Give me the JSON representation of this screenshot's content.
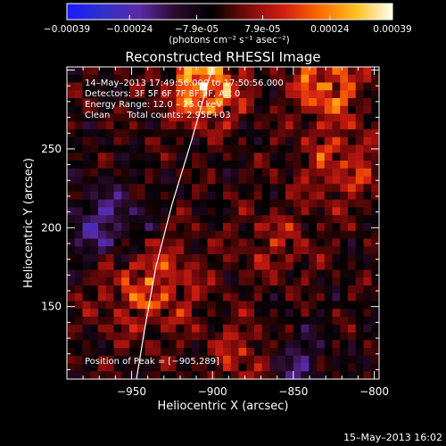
{
  "colorbar": {
    "ticks": [
      "-0.00039",
      "-0.00024",
      "-7.9e-05",
      "7.9e-05",
      "0.00024",
      "0.00039"
    ],
    "units": "(photons cm⁻² s⁻¹ asec⁻²)",
    "min": -0.00039,
    "max": 0.00039,
    "colors": [
      "#1a1aff",
      "#3030c8",
      "#5a2aa8",
      "#2a0a2a",
      "#000000",
      "#7a0a0a",
      "#d21e12",
      "#ff6a00",
      "#ffc020",
      "#fffff0"
    ]
  },
  "chart_data": {
    "type": "heatmap",
    "title": "Reconstructed RHESSI Image",
    "xlabel": "Heliocentric X (arcsec)",
    "ylabel": "Heliocentric Y (arcsec)",
    "xlim": [
      -990,
      -797
    ],
    "ylim": [
      104,
      302
    ],
    "x_ticks": [
      -950,
      -900,
      -850,
      -800
    ],
    "x_tick_labels": [
      "−950",
      "−900",
      "−850",
      "−800"
    ],
    "y_ticks": [
      150,
      200,
      250
    ],
    "y_tick_labels": [
      "150",
      "200",
      "250"
    ],
    "grid": false,
    "hot_regions": [
      {
        "x": -905,
        "y": 289,
        "sigma": 15,
        "amp": 1.0
      },
      {
        "x": -830,
        "y": 290,
        "sigma": 14,
        "amp": 0.75
      },
      {
        "x": -940,
        "y": 165,
        "sigma": 22,
        "amp": 0.55
      },
      {
        "x": -820,
        "y": 240,
        "sigma": 18,
        "amp": 0.45
      },
      {
        "x": -880,
        "y": 120,
        "sigma": 14,
        "amp": 0.4
      },
      {
        "x": -860,
        "y": 190,
        "sigma": 16,
        "amp": 0.3
      }
    ],
    "cold_regions": [
      {
        "x": -965,
        "y": 200,
        "sigma": 18,
        "amp": 0.55
      },
      {
        "x": -850,
        "y": 115,
        "sigma": 14,
        "amp": 0.4
      }
    ],
    "limb_curve": [
      [
        -947,
        104
      ],
      [
        -942,
        135
      ],
      [
        -935,
        175
      ],
      [
        -925,
        215
      ],
      [
        -913,
        255
      ],
      [
        -900,
        302
      ]
    ],
    "peak_marker": {
      "x": -905,
      "y": 289
    }
  },
  "annotations": {
    "line1": "14–May–2013 17:49:56.000 to 17:50:56.000",
    "line2": "Detectors: 3F 5F 6F 7F 8F 9F, Att 0",
    "line3": "Energy Range: 12.0 – 25.0 keV",
    "line4": "Clean      Total counts: 2.95E+03",
    "peak": "Position of Peak = [−905,289]"
  },
  "footer": {
    "timestamp": "15–May–2013 16:02"
  }
}
